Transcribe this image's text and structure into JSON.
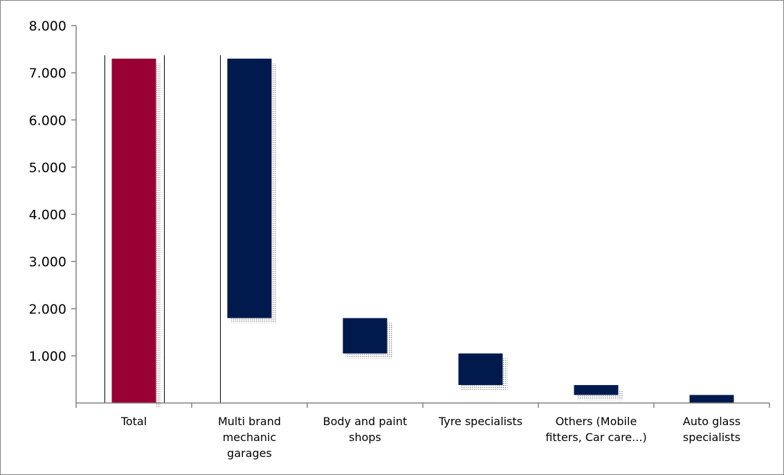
{
  "chart_data": {
    "type": "bar",
    "subtype": "waterfall",
    "title": "",
    "xlabel": "",
    "ylabel": "",
    "ylim": [
      0,
      8000
    ],
    "yticks": [
      "1.000",
      "2.000",
      "3.000",
      "4.000",
      "5.000",
      "6.000",
      "7.000",
      "8.000"
    ],
    "ytick_values": [
      1000,
      2000,
      3000,
      4000,
      5000,
      6000,
      7000,
      8000
    ],
    "grid": false,
    "legend": "none",
    "categories": [
      [
        "Total"
      ],
      [
        "Multi brand",
        "mechanic",
        "garages"
      ],
      [
        "Body and paint",
        "shops"
      ],
      [
        "Tyre specialists"
      ],
      [
        "Others (Mobile",
        "fitters, Car care...)"
      ],
      [
        "Auto glass",
        "specialists"
      ]
    ],
    "bars": [
      {
        "start": 0,
        "end": 7300
      },
      {
        "start": 1800,
        "end": 7300
      },
      {
        "start": 1050,
        "end": 1800
      },
      {
        "start": 380,
        "end": 1050
      },
      {
        "start": 170,
        "end": 380
      },
      {
        "start": 0,
        "end": 170
      }
    ],
    "contributions": [
      7300,
      5500,
      750,
      670,
      210,
      170
    ],
    "colors": {
      "total": "#990033",
      "component": "#001a4d",
      "axis": "#808080",
      "shadow": "#8c8c8c"
    }
  }
}
